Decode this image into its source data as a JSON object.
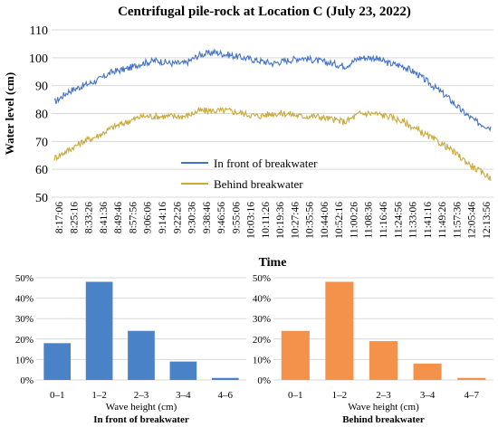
{
  "chart_data": [
    {
      "type": "line",
      "title": "Centrifugal pile-rock at Location C (July 23, 2022)",
      "xlabel": "Time",
      "ylabel": "Water level (cm)",
      "ylim": [
        50,
        110
      ],
      "yticks": [
        50,
        60,
        70,
        80,
        90,
        100,
        110
      ],
      "grid": true,
      "legend": "center",
      "x_range": [
        "8:17:06",
        "12:20:00"
      ],
      "x_tick_labels": [
        "8:17:06",
        "8:25:16",
        "8:33:26",
        "8:41:36",
        "8:49:46",
        "8:57:56",
        "9:06:06",
        "9:14:16",
        "9:22:26",
        "9:30:36",
        "9:38:46",
        "9:46:56",
        "9:55:06",
        "10:03:16",
        "10:11:26",
        "10:19:36",
        "10:27:46",
        "10:35:56",
        "10:44:06",
        "10:52:16",
        "11:00:26",
        "11:08:36",
        "11:16:46",
        "11:24:56",
        "11:33:06",
        "11:41:16",
        "11:49:26",
        "11:57:36",
        "12:05:46",
        "12:13:56"
      ],
      "series": [
        {
          "name": "In front of breakwater",
          "color": "#4472c4",
          "values": [
            84,
            88,
            90,
            92,
            95,
            96,
            98,
            99,
            98,
            98,
            101,
            102,
            101,
            100,
            99,
            98,
            99,
            100,
            99,
            98,
            97,
            100,
            100,
            98,
            97,
            94,
            90,
            86,
            81,
            77,
            75
          ]
        },
        {
          "name": "Behind breakwater",
          "color": "#c9a93b",
          "values": [
            64,
            67,
            70,
            72,
            75,
            77,
            79,
            79,
            79,
            79,
            81,
            81,
            81,
            80,
            79,
            80,
            80,
            79,
            79,
            78,
            77,
            80,
            80,
            79,
            77,
            74,
            71,
            68,
            64,
            60,
            57
          ]
        }
      ]
    },
    {
      "type": "bar",
      "title": "",
      "xlabel": "Wave height (cm)",
      "sublabel": "In front of breakwater",
      "categories": [
        "0–1",
        "1–2",
        "2–3",
        "3–4",
        "4–6"
      ],
      "values": [
        18,
        48,
        24,
        9,
        1
      ],
      "ylim": [
        0,
        50
      ],
      "yticks": [
        "0%",
        "10%",
        "20%",
        "30%",
        "40%",
        "50%"
      ],
      "grid": true,
      "color": "#4a82c8"
    },
    {
      "type": "bar",
      "title": "",
      "xlabel": "Wave height (cm)",
      "sublabel": "Behind breakwater",
      "categories": [
        "0–1",
        "1–2",
        "2–3",
        "3–4",
        "4–7"
      ],
      "values": [
        24,
        48,
        19,
        8,
        1
      ],
      "ylim": [
        0,
        50
      ],
      "yticks": [
        "0%",
        "10%",
        "20%",
        "30%",
        "40%",
        "50%"
      ],
      "grid": true,
      "color": "#f4914a"
    }
  ]
}
